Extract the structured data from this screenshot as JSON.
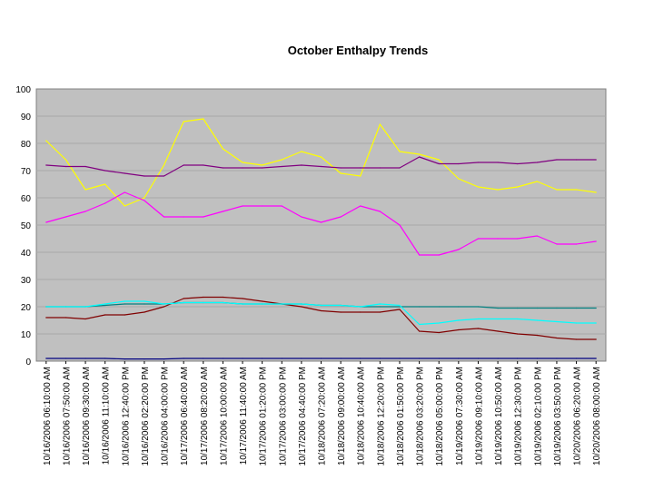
{
  "chart_data": {
    "type": "line",
    "title": "October Enthalpy Trends",
    "xlabel": "",
    "ylabel": "",
    "ylim": [
      0,
      100
    ],
    "y_ticks": [
      0,
      10,
      20,
      30,
      40,
      50,
      60,
      70,
      80,
      90,
      100
    ],
    "grid": "horizontal",
    "legend": "none",
    "plot_background": "#c0c0c0",
    "x": [
      "10/16/2006 06:10:00 AM",
      "10/16/2006 07:50:00 AM",
      "10/16/2006 09:30:00 AM",
      "10/16/2006 11:10:00 AM",
      "10/16/2006 12:40:00 PM",
      "10/16/2006 02:20:00 PM",
      "10/16/2006 04:00:00 PM",
      "10/17/2006 06:40:00 AM",
      "10/17/2006 08:20:00 AM",
      "10/17/2006 10:00:00 AM",
      "10/17/2006 11:40:00 AM",
      "10/17/2006 01:20:00 PM",
      "10/17/2006 03:00:00 PM",
      "10/17/2006 04:40:00 PM",
      "10/18/2006 07:20:00 AM",
      "10/18/2006 09:00:00 AM",
      "10/18/2006 10:40:00 AM",
      "10/18/2006 12:20:00 PM",
      "10/18/2006 01:50:00 PM",
      "10/18/2006 03:20:00 PM",
      "10/18/2006 05:00:00 PM",
      "10/19/2006 07:30:00 AM",
      "10/19/2006 09:10:00 AM",
      "10/19/2006 10:50:00 AM",
      "10/19/2006 12:30:00 PM",
      "10/19/2006 02:10:00 PM",
      "10/19/2006 03:50:00 PM",
      "10/20/2006 06:20:00 AM",
      "10/20/2006 08:00:00 AM"
    ],
    "series": [
      {
        "color": "#ffff00",
        "values": [
          81,
          74,
          63,
          65,
          57,
          60,
          72,
          88,
          89,
          78,
          73,
          72,
          74,
          77,
          75,
          69,
          68,
          87,
          77,
          76,
          74,
          67,
          64,
          63,
          64,
          66,
          63,
          63,
          62
        ]
      },
      {
        "color": "#800080",
        "values": [
          72,
          71.5,
          71.5,
          70,
          69,
          68,
          68,
          72,
          72,
          71,
          71,
          71,
          71.5,
          72,
          71.5,
          71,
          71,
          71,
          71,
          75,
          72.5,
          72.5,
          73,
          73,
          72.5,
          73,
          74,
          74,
          74
        ]
      },
      {
        "color": "#ff00ff",
        "values": [
          51,
          53,
          55,
          58,
          62,
          59,
          53,
          53,
          53,
          55,
          57,
          57,
          57,
          53,
          51,
          53,
          57,
          55,
          50,
          39,
          39,
          41,
          45,
          45,
          45,
          46,
          43,
          43,
          44
        ]
      },
      {
        "color": "#800000",
        "values": [
          16,
          16,
          15.5,
          17,
          17,
          18,
          20,
          23,
          23.5,
          23.5,
          23,
          22,
          21,
          20,
          18.5,
          18,
          18,
          18,
          19,
          11,
          10.5,
          11.5,
          12,
          11,
          10,
          9.5,
          8.5,
          8,
          8
        ]
      },
      {
        "color": "#008080",
        "values": [
          20,
          20,
          20,
          20.5,
          21,
          21,
          21,
          21.5,
          21.5,
          21.5,
          21,
          21,
          21,
          21,
          20.5,
          20.5,
          20,
          20,
          20,
          20,
          20,
          20,
          20,
          19.5,
          19.5,
          19.5,
          19.5,
          19.5,
          19.5
        ]
      },
      {
        "color": "#00ffff",
        "values": [
          20,
          20,
          20,
          21,
          22,
          22,
          21,
          21.5,
          21.5,
          21.5,
          21,
          21,
          21,
          21,
          20.5,
          20.5,
          20,
          21,
          20.5,
          13.5,
          14,
          15,
          15.5,
          15.5,
          15.5,
          15,
          14.5,
          14,
          14
        ]
      },
      {
        "color": "#000080",
        "values": [
          1,
          1,
          1,
          1,
          0.8,
          0.8,
          0.8,
          1,
          1,
          1,
          1,
          1,
          1,
          1,
          1,
          1,
          1,
          1,
          1,
          1,
          1,
          1,
          1,
          1,
          1,
          1,
          1,
          1,
          1
        ]
      }
    ]
  }
}
